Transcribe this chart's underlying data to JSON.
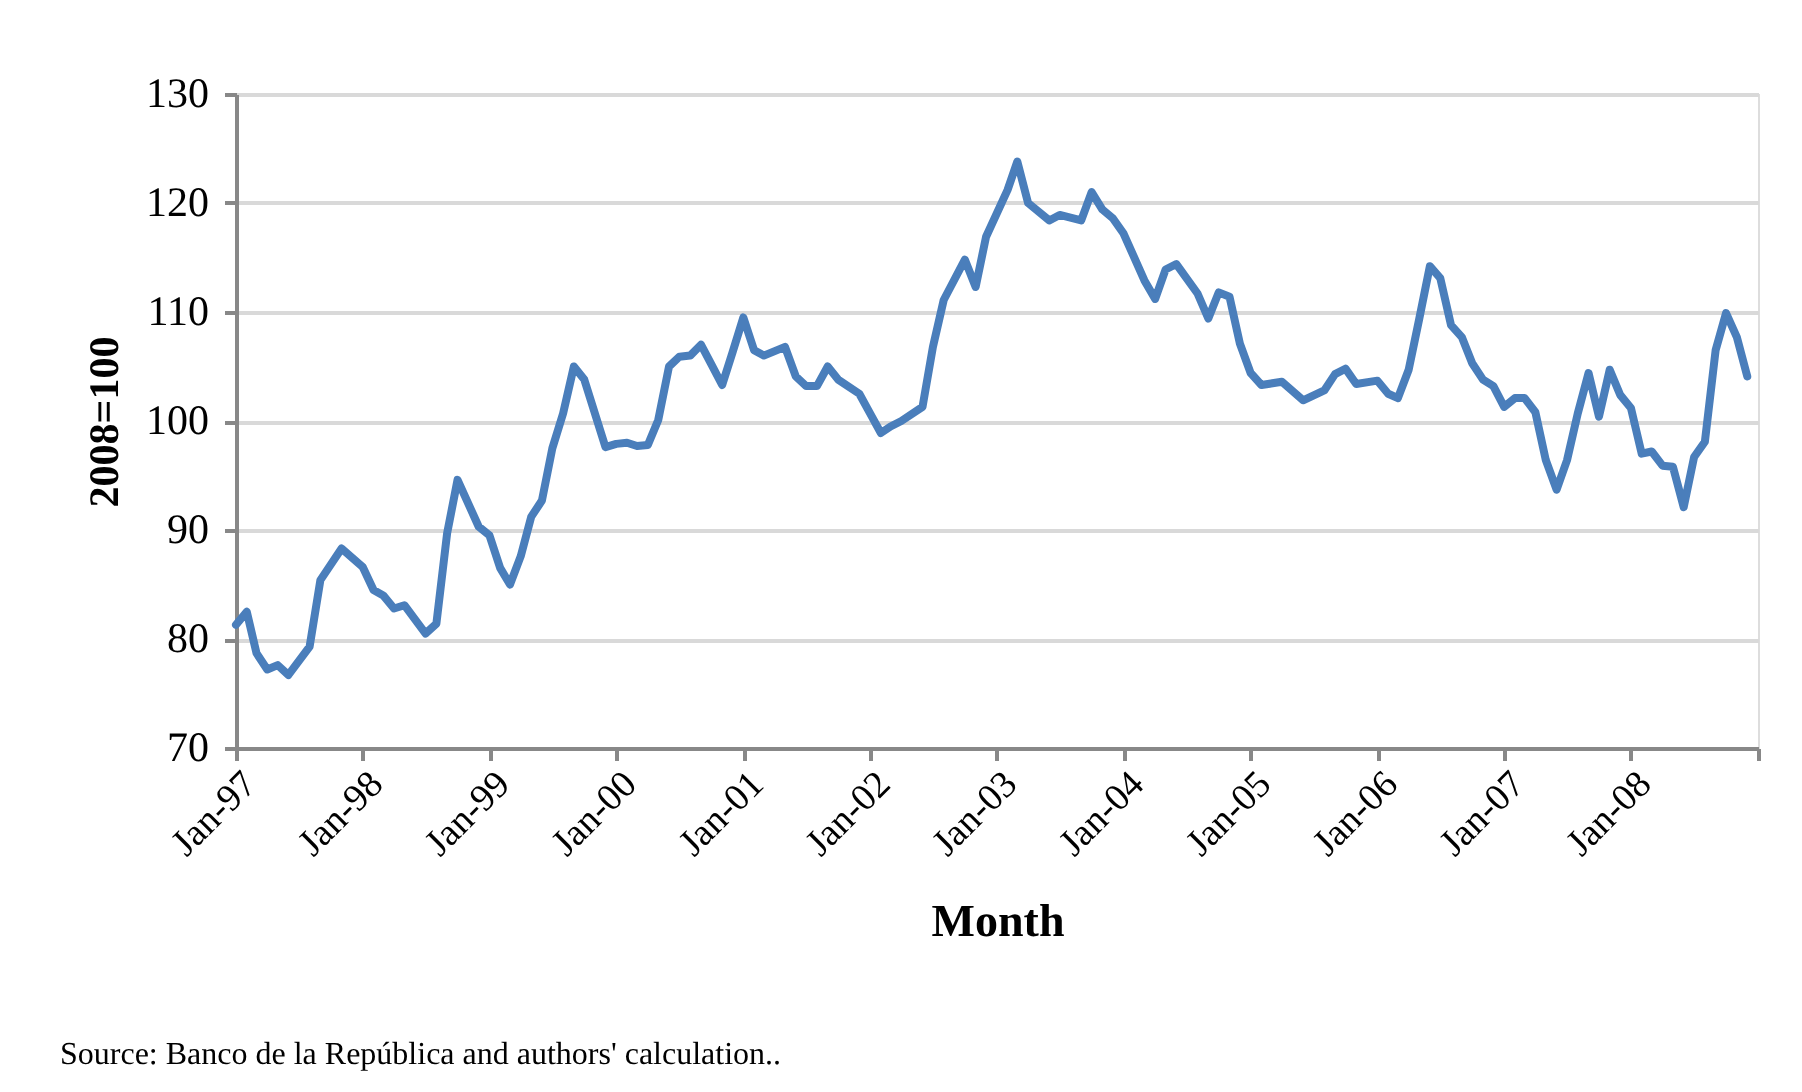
{
  "chart_data": {
    "type": "line",
    "xlabel": "Month",
    "ylabel": "2008=100",
    "annotations": [
      "Source: Banco de la República and authors' calculation.."
    ],
    "xlim": [
      "1997-01",
      "2009-01"
    ],
    "xticks": [
      {
        "value": "1997-01",
        "label": "Jan-97"
      },
      {
        "value": "1998-01",
        "label": "Jan-98"
      },
      {
        "value": "1999-01",
        "label": "Jan-99"
      },
      {
        "value": "2000-01",
        "label": "Jan-00"
      },
      {
        "value": "2001-01",
        "label": "Jan-01"
      },
      {
        "value": "2002-01",
        "label": "Jan-02"
      },
      {
        "value": "2003-01",
        "label": "Jan-03"
      },
      {
        "value": "2004-01",
        "label": "Jan-04"
      },
      {
        "value": "2005-01",
        "label": "Jan-05"
      },
      {
        "value": "2006-01",
        "label": "Jan-06"
      },
      {
        "value": "2007-01",
        "label": "Jan-07"
      },
      {
        "value": "2008-01",
        "label": "Jan-08"
      },
      {
        "value": "2009-01",
        "label": null
      }
    ],
    "ylim": [
      70,
      130
    ],
    "yticks": [
      70,
      80,
      90,
      100,
      110,
      120,
      130
    ],
    "grid": "y",
    "marker": "none",
    "line_style": "solid",
    "series": [
      {
        "color": "#4a7ebb",
        "x": [
          "1997-01",
          "1997-02",
          "1997-03",
          "1997-04",
          "1997-05",
          "1997-06",
          "1997-08",
          "1997-09",
          "1997-11",
          "1998-01",
          "1998-02",
          "1998-03",
          "1998-04",
          "1998-05",
          "1998-07",
          "1998-08",
          "1998-09",
          "1998-10",
          "1998-12",
          "1999-01",
          "1999-02",
          "1999-03",
          "1999-04",
          "1999-05",
          "1999-06",
          "1999-07",
          "1999-08",
          "1999-09",
          "1999-10",
          "1999-12",
          "2000-01",
          "2000-02",
          "2000-03",
          "2000-04",
          "2000-05",
          "2000-06",
          "2000-07",
          "2000-08",
          "2000-09",
          "2000-10",
          "2000-11",
          "2000-12",
          "2001-01",
          "2001-02",
          "2001-03",
          "2001-05",
          "2001-06",
          "2001-07",
          "2001-08",
          "2001-09",
          "2001-10",
          "2001-12",
          "2002-01",
          "2002-02",
          "2002-03",
          "2002-04",
          "2002-06",
          "2002-07",
          "2002-08",
          "2002-10",
          "2002-11",
          "2002-12",
          "2003-02",
          "2003-03",
          "2003-04",
          "2003-06",
          "2003-07",
          "2003-09",
          "2003-10",
          "2003-11",
          "2003-12",
          "2004-01",
          "2004-03",
          "2004-04",
          "2004-05",
          "2004-06",
          "2004-08",
          "2004-09",
          "2004-10",
          "2004-11",
          "2004-12",
          "2005-01",
          "2005-02",
          "2005-04",
          "2005-06",
          "2005-08",
          "2005-09",
          "2005-10",
          "2005-11",
          "2006-01",
          "2006-02",
          "2006-03",
          "2006-04",
          "2006-05",
          "2006-06",
          "2006-07",
          "2006-08",
          "2006-09",
          "2006-10",
          "2006-11",
          "2006-12",
          "2007-01",
          "2007-02",
          "2007-03",
          "2007-04",
          "2007-05",
          "2007-06",
          "2007-07",
          "2007-08",
          "2007-09",
          "2007-10",
          "2007-11",
          "2007-12",
          "2008-01",
          "2008-02",
          "2008-03",
          "2008-04",
          "2008-05",
          "2008-06",
          "2008-07",
          "2008-08",
          "2008-09",
          "2008-10",
          "2008-11",
          "2008-12"
        ],
        "values": [
          81.3,
          82.5,
          78.7,
          77.2,
          77.6,
          76.7,
          79.3,
          85.4,
          88.3,
          86.6,
          84.5,
          84,
          82.8,
          83.1,
          80.5,
          81.4,
          89.7,
          94.6,
          90.3,
          89.5,
          86.5,
          85,
          87.6,
          91.2,
          92.7,
          97.5,
          100.7,
          105,
          103.8,
          97.6,
          97.9,
          98,
          97.7,
          97.8,
          100.1,
          105,
          105.9,
          106,
          107,
          105.2,
          103.3,
          106.3,
          109.5,
          106.5,
          106,
          106.8,
          104.1,
          103.2,
          103.2,
          105,
          103.8,
          102.5,
          100.7,
          98.9,
          99.5,
          100,
          101.3,
          106.8,
          111.1,
          114.8,
          112.3,
          116.9,
          121.2,
          123.8,
          120,
          118.4,
          118.9,
          118.4,
          121,
          119.4,
          118.6,
          117.2,
          112.9,
          111.2,
          113.9,
          114.4,
          111.7,
          109.4,
          111.8,
          111.4,
          107.1,
          104.4,
          103.3,
          103.6,
          101.9,
          102.8,
          104.3,
          104.8,
          103.4,
          103.7,
          102.5,
          102.1,
          104.7,
          109.3,
          114.2,
          113.1,
          108.8,
          107.7,
          105.3,
          103.8,
          103.2,
          101.3,
          102.1,
          102.1,
          100.8,
          96.4,
          93.7,
          96.4,
          100.7,
          104.4,
          100.4,
          104.7,
          102.4,
          101.2,
          97,
          97.2,
          95.9,
          95.8,
          92.1,
          96.7,
          98.1,
          106.5,
          109.9,
          107.7,
          104.1
        ]
      }
    ]
  }
}
